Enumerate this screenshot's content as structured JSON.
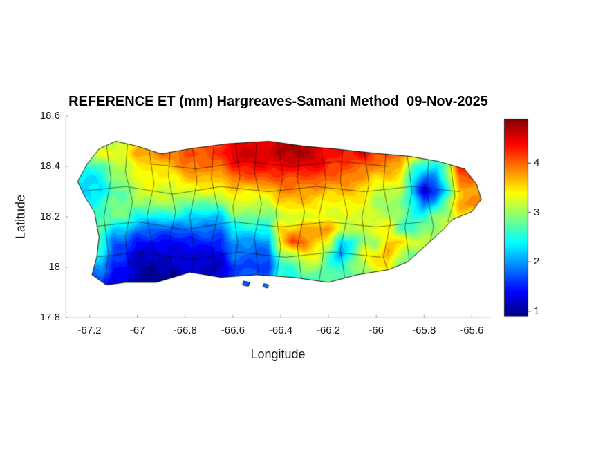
{
  "chart_data": {
    "type": "heatmap",
    "title": "REFERENCE ET (mm) Hargreaves-Samani Method  09-Nov-2025",
    "xlabel": "Longitude",
    "ylabel": "Latitude",
    "xlim": [
      -67.3,
      -65.52
    ],
    "ylim": [
      17.8,
      18.6
    ],
    "xticks": [
      -67.2,
      -67,
      -66.8,
      -66.6,
      -66.4,
      -66.2,
      -66,
      -65.8,
      -65.6
    ],
    "xtick_labels": [
      "-67.2",
      "-67",
      "-66.8",
      "-66.6",
      "-66.4",
      "-66.2",
      "-66",
      "-65.8",
      "-65.6"
    ],
    "yticks": [
      18.6,
      18.4,
      18.2,
      18,
      17.8
    ],
    "ytick_labels": [
      "18.6",
      "18.4",
      "18.2",
      "18",
      "17.8"
    ],
    "colormap": "jet",
    "clim": [
      0.9,
      4.9
    ],
    "colorbar": {
      "ticks": [
        1,
        2,
        3,
        4
      ],
      "tick_labels": [
        "1",
        "2",
        "3",
        "4"
      ]
    },
    "grid": {
      "lon0": -67.25,
      "dlon": 0.05,
      "nx": 34,
      "lat0": 17.9,
      "dlat": 0.05,
      "ny": 13,
      "row_order": "north_to_south",
      "values": [
        [
          3.0,
          3.0,
          3.0,
          3.1,
          3.2,
          3.6,
          3.6,
          3.7,
          3.8,
          4.0,
          4.0,
          4.1,
          4.1,
          4.4,
          4.5,
          4.5,
          4.5,
          4.6,
          4.7,
          4.6,
          4.6,
          4.3,
          4.3,
          4.2,
          4.2,
          4.0,
          4.0,
          3.9,
          3.9,
          3.4,
          3.3,
          3.3,
          3.8,
          3.8
        ],
        [
          3.2,
          3.2,
          3.3,
          3.3,
          3.4,
          3.8,
          3.8,
          3.9,
          3.9,
          4.1,
          4.1,
          4.2,
          4.2,
          4.5,
          4.6,
          4.6,
          4.6,
          4.7,
          4.7,
          4.7,
          4.6,
          4.4,
          4.4,
          4.3,
          4.4,
          4.1,
          4.1,
          4.0,
          3.8,
          3.0,
          3.0,
          3.2,
          4.2,
          4.3
        ],
        [
          2.6,
          2.6,
          2.7,
          3.0,
          3.0,
          3.5,
          3.5,
          3.6,
          3.6,
          3.9,
          3.9,
          4.0,
          4.0,
          4.3,
          4.3,
          4.4,
          4.4,
          4.5,
          4.5,
          4.4,
          4.4,
          4.2,
          4.2,
          4.1,
          4.0,
          3.8,
          3.8,
          3.7,
          2.8,
          2.6,
          2.2,
          3.0,
          4.3,
          4.3
        ],
        [
          2.3,
          2.3,
          2.4,
          3.0,
          3.0,
          3.2,
          3.4,
          3.4,
          3.4,
          3.6,
          3.6,
          3.6,
          3.6,
          4.0,
          4.0,
          4.0,
          4.0,
          4.1,
          4.1,
          4.1,
          4.1,
          3.9,
          3.9,
          3.9,
          3.8,
          3.5,
          3.5,
          3.4,
          2.4,
          1.8,
          2.0,
          2.8,
          4.0,
          4.0
        ],
        [
          2.2,
          2.2,
          2.3,
          2.8,
          2.8,
          3.2,
          3.2,
          3.2,
          3.2,
          3.3,
          3.3,
          3.3,
          3.3,
          3.5,
          3.5,
          3.5,
          3.5,
          3.8,
          3.8,
          3.8,
          3.8,
          3.6,
          3.6,
          3.6,
          3.5,
          3.2,
          3.2,
          3.1,
          2.2,
          1.2,
          1.6,
          2.6,
          3.6,
          3.7
        ],
        [
          2.4,
          2.4,
          2.5,
          2.9,
          2.9,
          3.0,
          3.0,
          3.0,
          3.0,
          2.8,
          2.8,
          2.8,
          2.8,
          3.2,
          3.2,
          3.2,
          3.2,
          3.5,
          3.5,
          3.5,
          3.5,
          3.4,
          3.4,
          3.4,
          3.3,
          3.0,
          3.0,
          3.0,
          2.5,
          1.8,
          2.2,
          3.0,
          3.9,
          3.9
        ],
        [
          2.6,
          2.6,
          2.7,
          2.8,
          2.8,
          2.4,
          2.4,
          2.4,
          2.4,
          2.2,
          2.2,
          2.2,
          2.2,
          2.8,
          2.8,
          2.8,
          2.8,
          3.2,
          3.2,
          3.2,
          3.2,
          3.3,
          3.3,
          3.3,
          3.2,
          3.1,
          3.1,
          3.0,
          2.6,
          2.6,
          3.0,
          3.0,
          3.4,
          3.4
        ],
        [
          2.8,
          2.8,
          2.8,
          2.2,
          2.2,
          1.8,
          1.8,
          1.8,
          1.8,
          1.8,
          1.8,
          1.8,
          1.8,
          2.4,
          2.4,
          2.4,
          2.4,
          3.6,
          3.6,
          3.8,
          3.8,
          3.8,
          3.2,
          3.2,
          3.2,
          3.4,
          3.4,
          2.6,
          2.6,
          3.0,
          3.0,
          3.2,
          3.2,
          3.2
        ],
        [
          2.6,
          2.6,
          2.6,
          1.8,
          1.8,
          1.4,
          1.4,
          1.4,
          1.4,
          1.5,
          1.5,
          1.5,
          1.5,
          2.0,
          2.0,
          2.0,
          2.0,
          3.4,
          4.2,
          4.0,
          3.6,
          3.4,
          2.2,
          2.4,
          3.0,
          3.0,
          3.6,
          3.6,
          3.2,
          3.2,
          3.0,
          3.0,
          3.0,
          3.0
        ],
        [
          2.4,
          2.4,
          2.4,
          1.6,
          1.6,
          1.2,
          1.2,
          1.2,
          1.2,
          1.3,
          1.3,
          1.3,
          1.3,
          1.8,
          1.8,
          1.8,
          1.8,
          3.0,
          3.0,
          3.4,
          3.4,
          2.8,
          2.0,
          2.6,
          3.4,
          3.4,
          3.8,
          3.2,
          2.8,
          2.8,
          3.0,
          3.0,
          3.0,
          3.0
        ],
        [
          2.0,
          2.0,
          2.0,
          1.4,
          1.4,
          1.1,
          1.1,
          1.1,
          1.1,
          1.2,
          1.2,
          1.2,
          1.2,
          1.6,
          1.6,
          1.6,
          1.6,
          2.6,
          2.6,
          3.0,
          3.0,
          2.6,
          2.6,
          3.0,
          3.0,
          3.4,
          3.4,
          2.8,
          2.8,
          2.8,
          2.8,
          2.8,
          2.8,
          2.8
        ],
        [
          1.8,
          1.8,
          1.8,
          1.3,
          1.3,
          1.0,
          1.0,
          1.0,
          1.0,
          1.2,
          1.2,
          1.2,
          1.2,
          1.8,
          1.8,
          1.8,
          1.8,
          2.6,
          2.6,
          2.6,
          2.6,
          2.8,
          2.8,
          2.8,
          2.8,
          3.0,
          3.0,
          3.0,
          3.0,
          2.8,
          2.8,
          2.8,
          2.8,
          2.8
        ],
        [
          1.8,
          1.8,
          1.8,
          1.3,
          1.3,
          1.0,
          1.0,
          1.0,
          1.0,
          1.2,
          1.2,
          1.2,
          1.2,
          1.8,
          1.8,
          1.8,
          1.8,
          2.6,
          2.6,
          2.6,
          2.6,
          2.8,
          2.8,
          2.8,
          2.8,
          3.0,
          3.0,
          3.0,
          3.0,
          2.8,
          2.8,
          2.8,
          2.8,
          2.8
        ]
      ]
    },
    "island_outline": [
      [
        -67.16,
        18.47
      ],
      [
        -67.09,
        18.5
      ],
      [
        -67.0,
        18.48
      ],
      [
        -66.9,
        18.45
      ],
      [
        -66.78,
        18.47
      ],
      [
        -66.62,
        18.49
      ],
      [
        -66.45,
        18.5
      ],
      [
        -66.3,
        18.48
      ],
      [
        -66.18,
        18.47
      ],
      [
        -66.08,
        18.46
      ],
      [
        -65.98,
        18.45
      ],
      [
        -65.86,
        18.44
      ],
      [
        -65.74,
        18.42
      ],
      [
        -65.63,
        18.39
      ],
      [
        -65.58,
        18.33
      ],
      [
        -65.56,
        18.27
      ],
      [
        -65.6,
        18.22
      ],
      [
        -65.68,
        18.19
      ],
      [
        -65.73,
        18.14
      ],
      [
        -65.8,
        18.08
      ],
      [
        -65.87,
        18.02
      ],
      [
        -65.95,
        17.99
      ],
      [
        -66.08,
        17.97
      ],
      [
        -66.2,
        17.94
      ],
      [
        -66.35,
        17.96
      ],
      [
        -66.5,
        17.97
      ],
      [
        -66.65,
        17.96
      ],
      [
        -66.78,
        17.98
      ],
      [
        -66.92,
        17.94
      ],
      [
        -67.05,
        17.94
      ],
      [
        -67.13,
        17.93
      ],
      [
        -67.19,
        17.97
      ],
      [
        -67.17,
        18.04
      ],
      [
        -67.16,
        18.12
      ],
      [
        -67.18,
        18.22
      ],
      [
        -67.22,
        18.28
      ],
      [
        -67.25,
        18.34
      ],
      [
        -67.21,
        18.41
      ]
    ],
    "islets": [
      [
        [
          -66.555,
          17.945
        ],
        [
          -66.53,
          17.94
        ],
        [
          -66.535,
          17.925
        ],
        [
          -66.56,
          17.93
        ]
      ],
      [
        [
          -66.47,
          17.935
        ],
        [
          -66.45,
          17.93
        ],
        [
          -66.455,
          17.918
        ],
        [
          -66.475,
          17.923
        ]
      ]
    ],
    "municipal_boundaries": [
      [
        [
          -67.13,
          18.49
        ],
        [
          -67.11,
          18.35
        ],
        [
          -67.14,
          18.2
        ],
        [
          -67.12,
          18.05
        ],
        [
          -67.14,
          17.93
        ]
      ],
      [
        [
          -67.04,
          18.5
        ],
        [
          -67.05,
          18.38
        ],
        [
          -67.02,
          18.26
        ],
        [
          -67.05,
          18.12
        ],
        [
          -67.03,
          17.95
        ]
      ],
      [
        [
          -66.95,
          18.46
        ],
        [
          -66.93,
          18.33
        ],
        [
          -66.96,
          18.2
        ],
        [
          -66.93,
          18.06
        ],
        [
          -66.95,
          17.94
        ]
      ],
      [
        [
          -66.86,
          18.49
        ],
        [
          -66.87,
          18.36
        ],
        [
          -66.84,
          18.22
        ],
        [
          -66.87,
          18.08
        ],
        [
          -66.85,
          17.96
        ]
      ],
      [
        [
          -66.77,
          18.48
        ],
        [
          -66.75,
          18.34
        ],
        [
          -66.78,
          18.2
        ],
        [
          -66.76,
          18.04
        ],
        [
          -66.78,
          17.95
        ]
      ],
      [
        [
          -66.68,
          18.49
        ],
        [
          -66.69,
          18.35
        ],
        [
          -66.66,
          18.22
        ],
        [
          -66.69,
          18.1
        ],
        [
          -66.67,
          17.94
        ]
      ],
      [
        [
          -66.59,
          18.49
        ],
        [
          -66.57,
          18.36
        ],
        [
          -66.6,
          18.24
        ],
        [
          -66.58,
          18.1
        ],
        [
          -66.6,
          17.96
        ]
      ],
      [
        [
          -66.5,
          18.5
        ],
        [
          -66.51,
          18.38
        ],
        [
          -66.48,
          18.25
        ],
        [
          -66.51,
          18.12
        ],
        [
          -66.49,
          17.95
        ]
      ],
      [
        [
          -66.41,
          18.49
        ],
        [
          -66.39,
          18.36
        ],
        [
          -66.42,
          18.22
        ],
        [
          -66.4,
          18.08
        ],
        [
          -66.42,
          17.95
        ]
      ],
      [
        [
          -66.32,
          18.48
        ],
        [
          -66.33,
          18.35
        ],
        [
          -66.3,
          18.22
        ],
        [
          -66.33,
          18.08
        ],
        [
          -66.31,
          17.94
        ]
      ],
      [
        [
          -66.23,
          18.47
        ],
        [
          -66.21,
          18.34
        ],
        [
          -66.24,
          18.2
        ],
        [
          -66.22,
          18.06
        ],
        [
          -66.24,
          17.94
        ]
      ],
      [
        [
          -66.14,
          18.47
        ],
        [
          -66.15,
          18.34
        ],
        [
          -66.12,
          18.21
        ],
        [
          -66.15,
          18.07
        ],
        [
          -66.13,
          17.95
        ]
      ],
      [
        [
          -66.05,
          18.46
        ],
        [
          -66.03,
          18.33
        ],
        [
          -66.06,
          18.2
        ],
        [
          -66.04,
          18.05
        ],
        [
          -66.06,
          17.96
        ]
      ],
      [
        [
          -65.96,
          18.45
        ],
        [
          -65.97,
          18.32
        ],
        [
          -65.94,
          18.18
        ],
        [
          -65.97,
          18.04
        ],
        [
          -65.95,
          17.98
        ]
      ],
      [
        [
          -65.87,
          18.44
        ],
        [
          -65.85,
          18.3
        ],
        [
          -65.88,
          18.16
        ],
        [
          -65.86,
          18.02
        ]
      ],
      [
        [
          -65.78,
          18.43
        ],
        [
          -65.79,
          18.3
        ],
        [
          -65.76,
          18.16
        ],
        [
          -65.78,
          18.08
        ]
      ],
      [
        [
          -65.69,
          18.41
        ],
        [
          -65.67,
          18.28
        ],
        [
          -65.7,
          18.18
        ]
      ],
      [
        [
          -67.25,
          18.3
        ],
        [
          -67.05,
          18.32
        ],
        [
          -66.85,
          18.29
        ],
        [
          -66.65,
          18.32
        ],
        [
          -66.45,
          18.3
        ],
        [
          -66.25,
          18.32
        ],
        [
          -66.05,
          18.3
        ],
        [
          -65.85,
          18.32
        ],
        [
          -65.65,
          18.3
        ]
      ],
      [
        [
          -67.2,
          18.16
        ],
        [
          -67.0,
          18.18
        ],
        [
          -66.8,
          18.15
        ],
        [
          -66.6,
          18.18
        ],
        [
          -66.4,
          18.16
        ],
        [
          -66.2,
          18.18
        ],
        [
          -66.0,
          18.16
        ],
        [
          -65.8,
          18.18
        ]
      ],
      [
        [
          -67.18,
          18.04
        ],
        [
          -66.98,
          18.06
        ],
        [
          -66.78,
          18.03
        ],
        [
          -66.58,
          18.06
        ],
        [
          -66.38,
          18.04
        ],
        [
          -66.18,
          18.06
        ],
        [
          -65.98,
          18.04
        ]
      ],
      [
        [
          -66.95,
          18.41
        ],
        [
          -66.75,
          18.39
        ],
        [
          -66.55,
          18.42
        ],
        [
          -66.35,
          18.4
        ],
        [
          -66.15,
          18.42
        ],
        [
          -65.95,
          18.4
        ]
      ]
    ]
  }
}
